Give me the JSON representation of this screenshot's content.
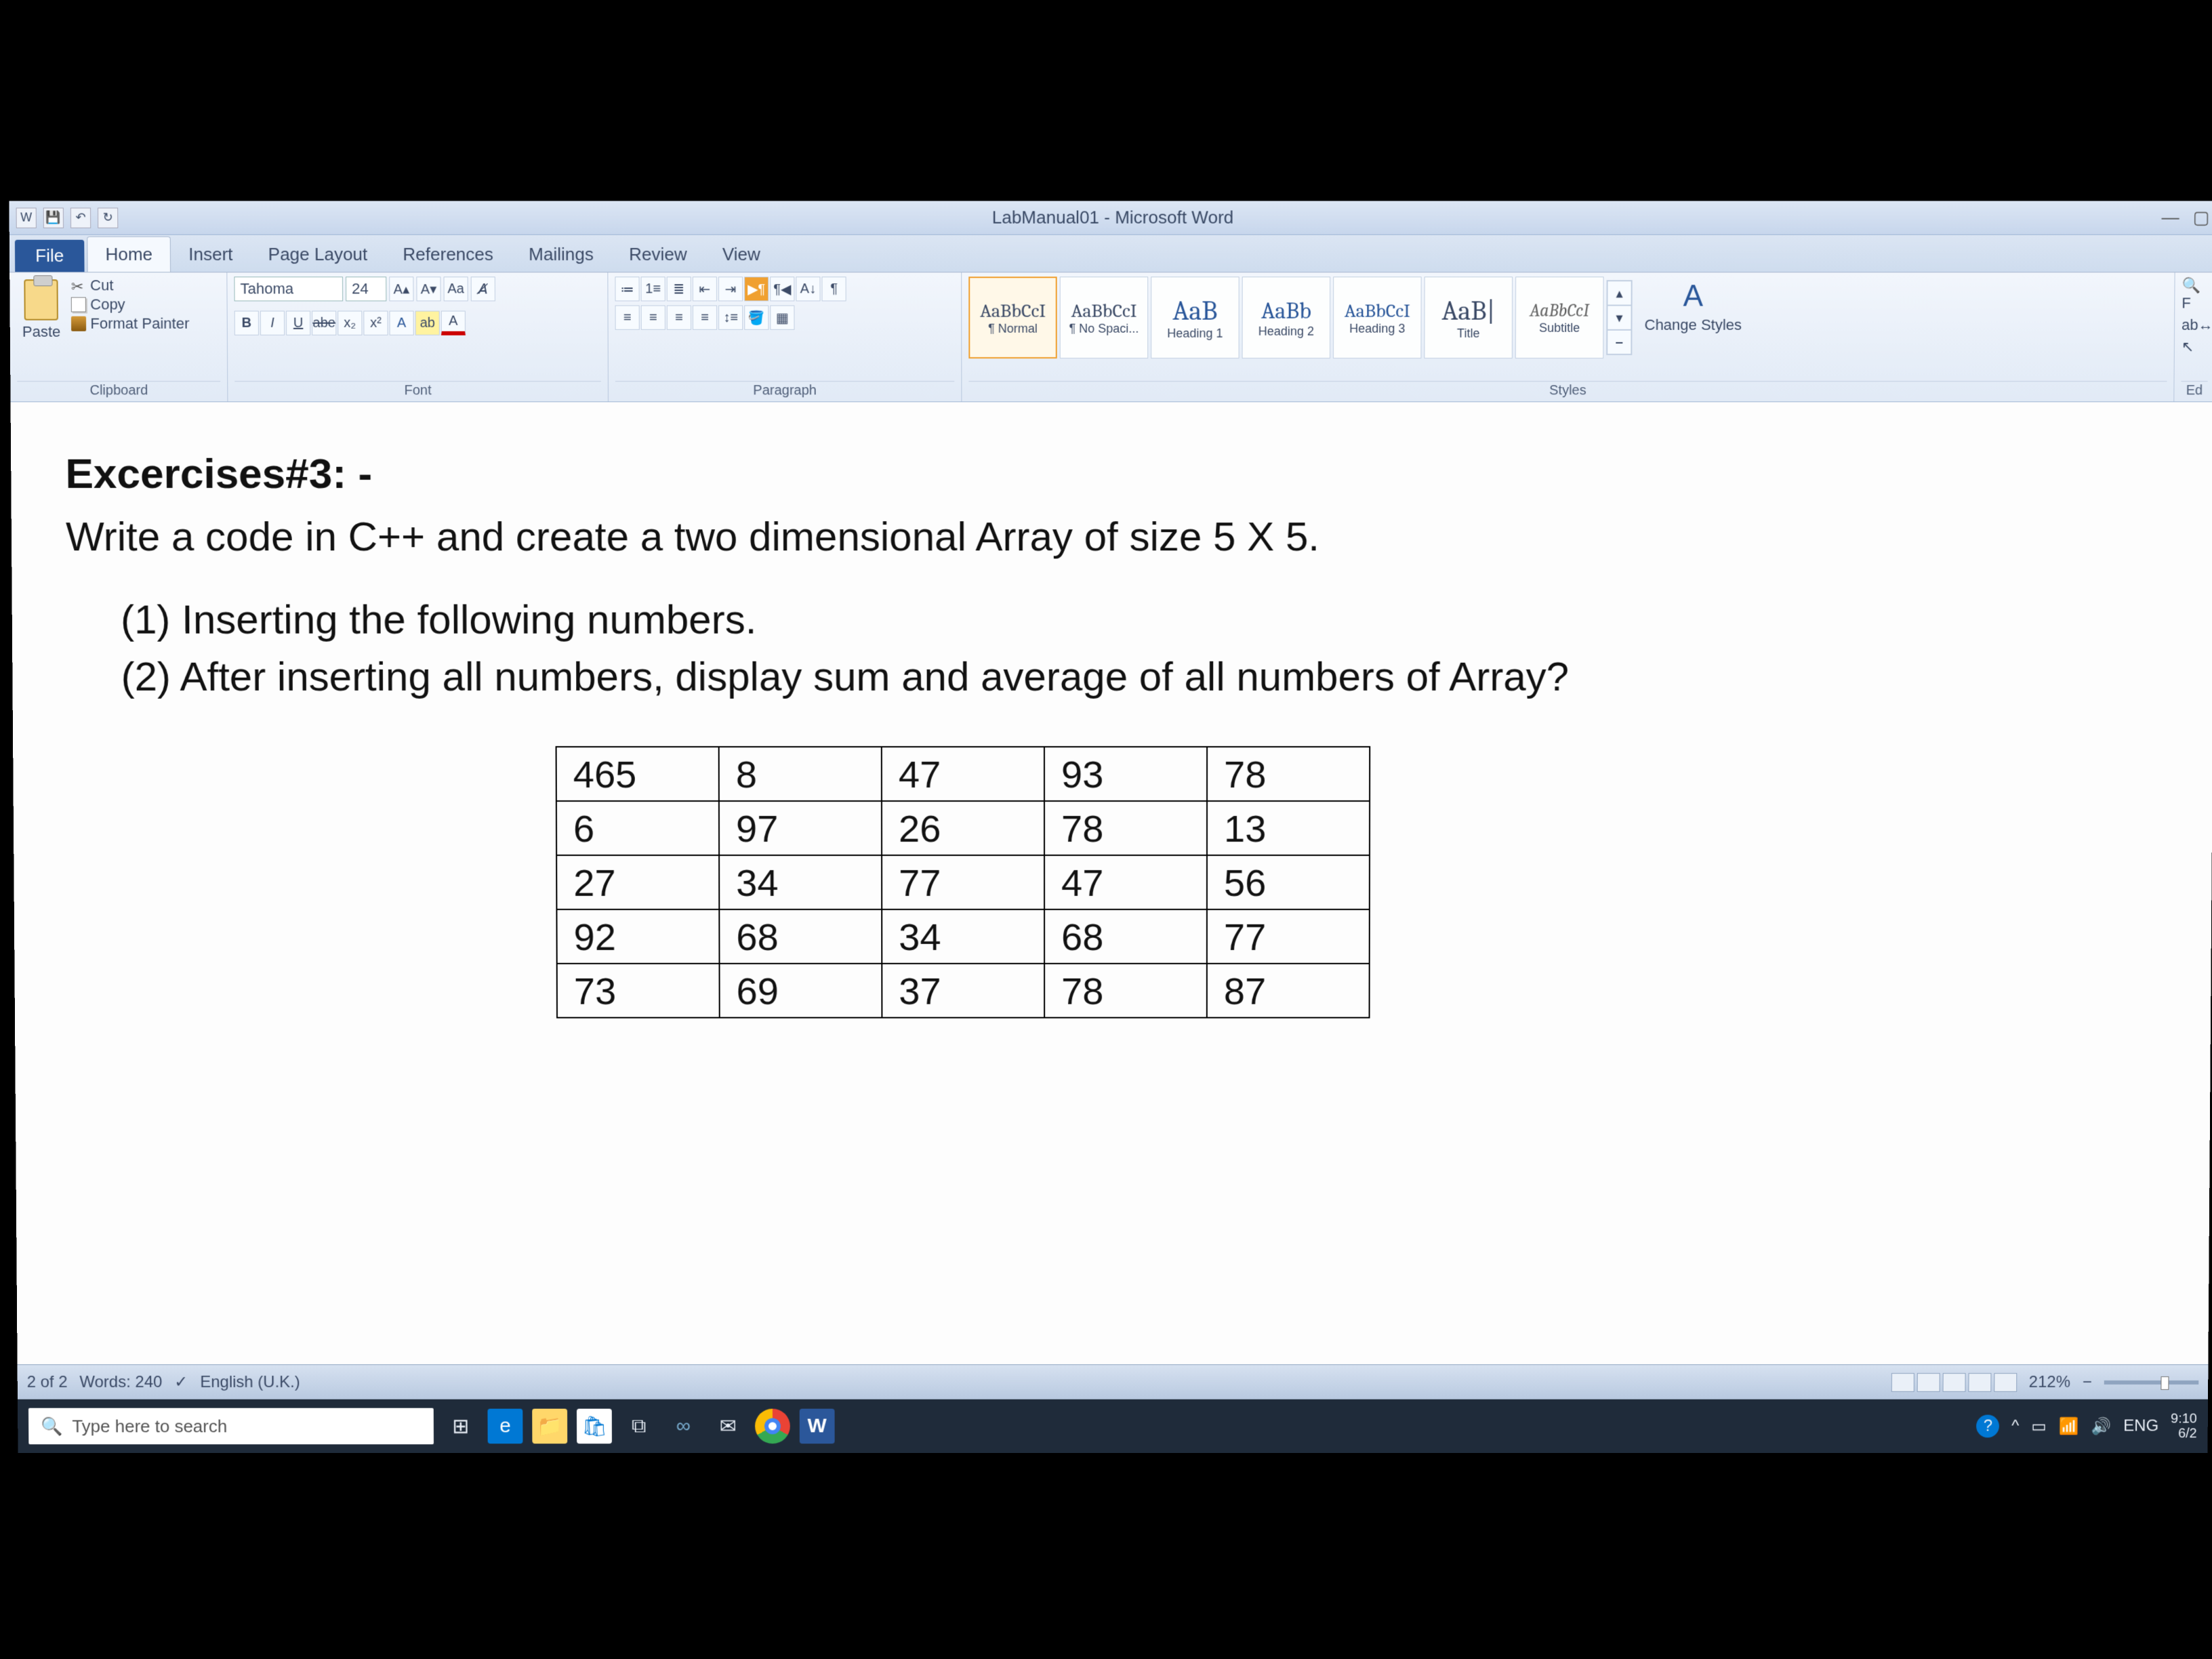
{
  "app": {
    "title": "LabManual01 - Microsoft Word"
  },
  "tabs": {
    "file": "File",
    "list": [
      "Home",
      "Insert",
      "Page Layout",
      "References",
      "Mailings",
      "Review",
      "View"
    ],
    "active": "Home"
  },
  "ribbon": {
    "clipboard": {
      "label": "Clipboard",
      "paste": "Paste",
      "cut": "Cut",
      "copy": "Copy",
      "format_painter": "Format Painter"
    },
    "font": {
      "label": "Font",
      "name": "Tahoma",
      "size": "24"
    },
    "paragraph": {
      "label": "Paragraph"
    },
    "styles": {
      "label": "Styles",
      "items": [
        {
          "sample": "AaBbCcI",
          "name": "¶ Normal"
        },
        {
          "sample": "AaBbCcI",
          "name": "¶ No Spaci..."
        },
        {
          "sample": "AaB",
          "name": "Heading 1"
        },
        {
          "sample": "AaBb",
          "name": "Heading 2"
        },
        {
          "sample": "AaBbCcI",
          "name": "Heading 3"
        },
        {
          "sample": "AaB|",
          "name": "Title"
        },
        {
          "sample": "AaBbCcI",
          "name": "Subtitle"
        }
      ],
      "change": "Change Styles"
    },
    "editing": {
      "label": "Ed"
    }
  },
  "document": {
    "heading": "Excercises#3: -",
    "intro": "Write a code in C++ and create a two dimensional Array of size 5 X 5.",
    "item1": "(1) Inserting the following numbers.",
    "item2": "(2) After inserting all numbers, display sum and average of all numbers of Array?",
    "table": {
      "rows": [
        [
          "465",
          "8",
          "47",
          "93",
          "78"
        ],
        [
          "6",
          "97",
          "26",
          "78",
          "13"
        ],
        [
          "27",
          "34",
          "77",
          "47",
          "56"
        ],
        [
          "92",
          "68",
          "34",
          "68",
          "77"
        ],
        [
          "73",
          "69",
          "37",
          "78",
          "87"
        ]
      ],
      "cell_border_color": "#000000",
      "cell_font_size_pt": 24
    }
  },
  "status": {
    "page": "2 of 2",
    "words": "Words: 240",
    "language": "English (U.K.)",
    "zoom": "212%"
  },
  "taskbar": {
    "search_placeholder": "Type here to search",
    "lang": "ENG",
    "time": "9:10",
    "date": "6/2"
  },
  "colors": {
    "ribbon_bg_top": "#f2f6fc",
    "ribbon_bg_bottom": "#e1eaf6",
    "accent": "#2a579a",
    "taskbar_bg": "#1f2b3a"
  }
}
